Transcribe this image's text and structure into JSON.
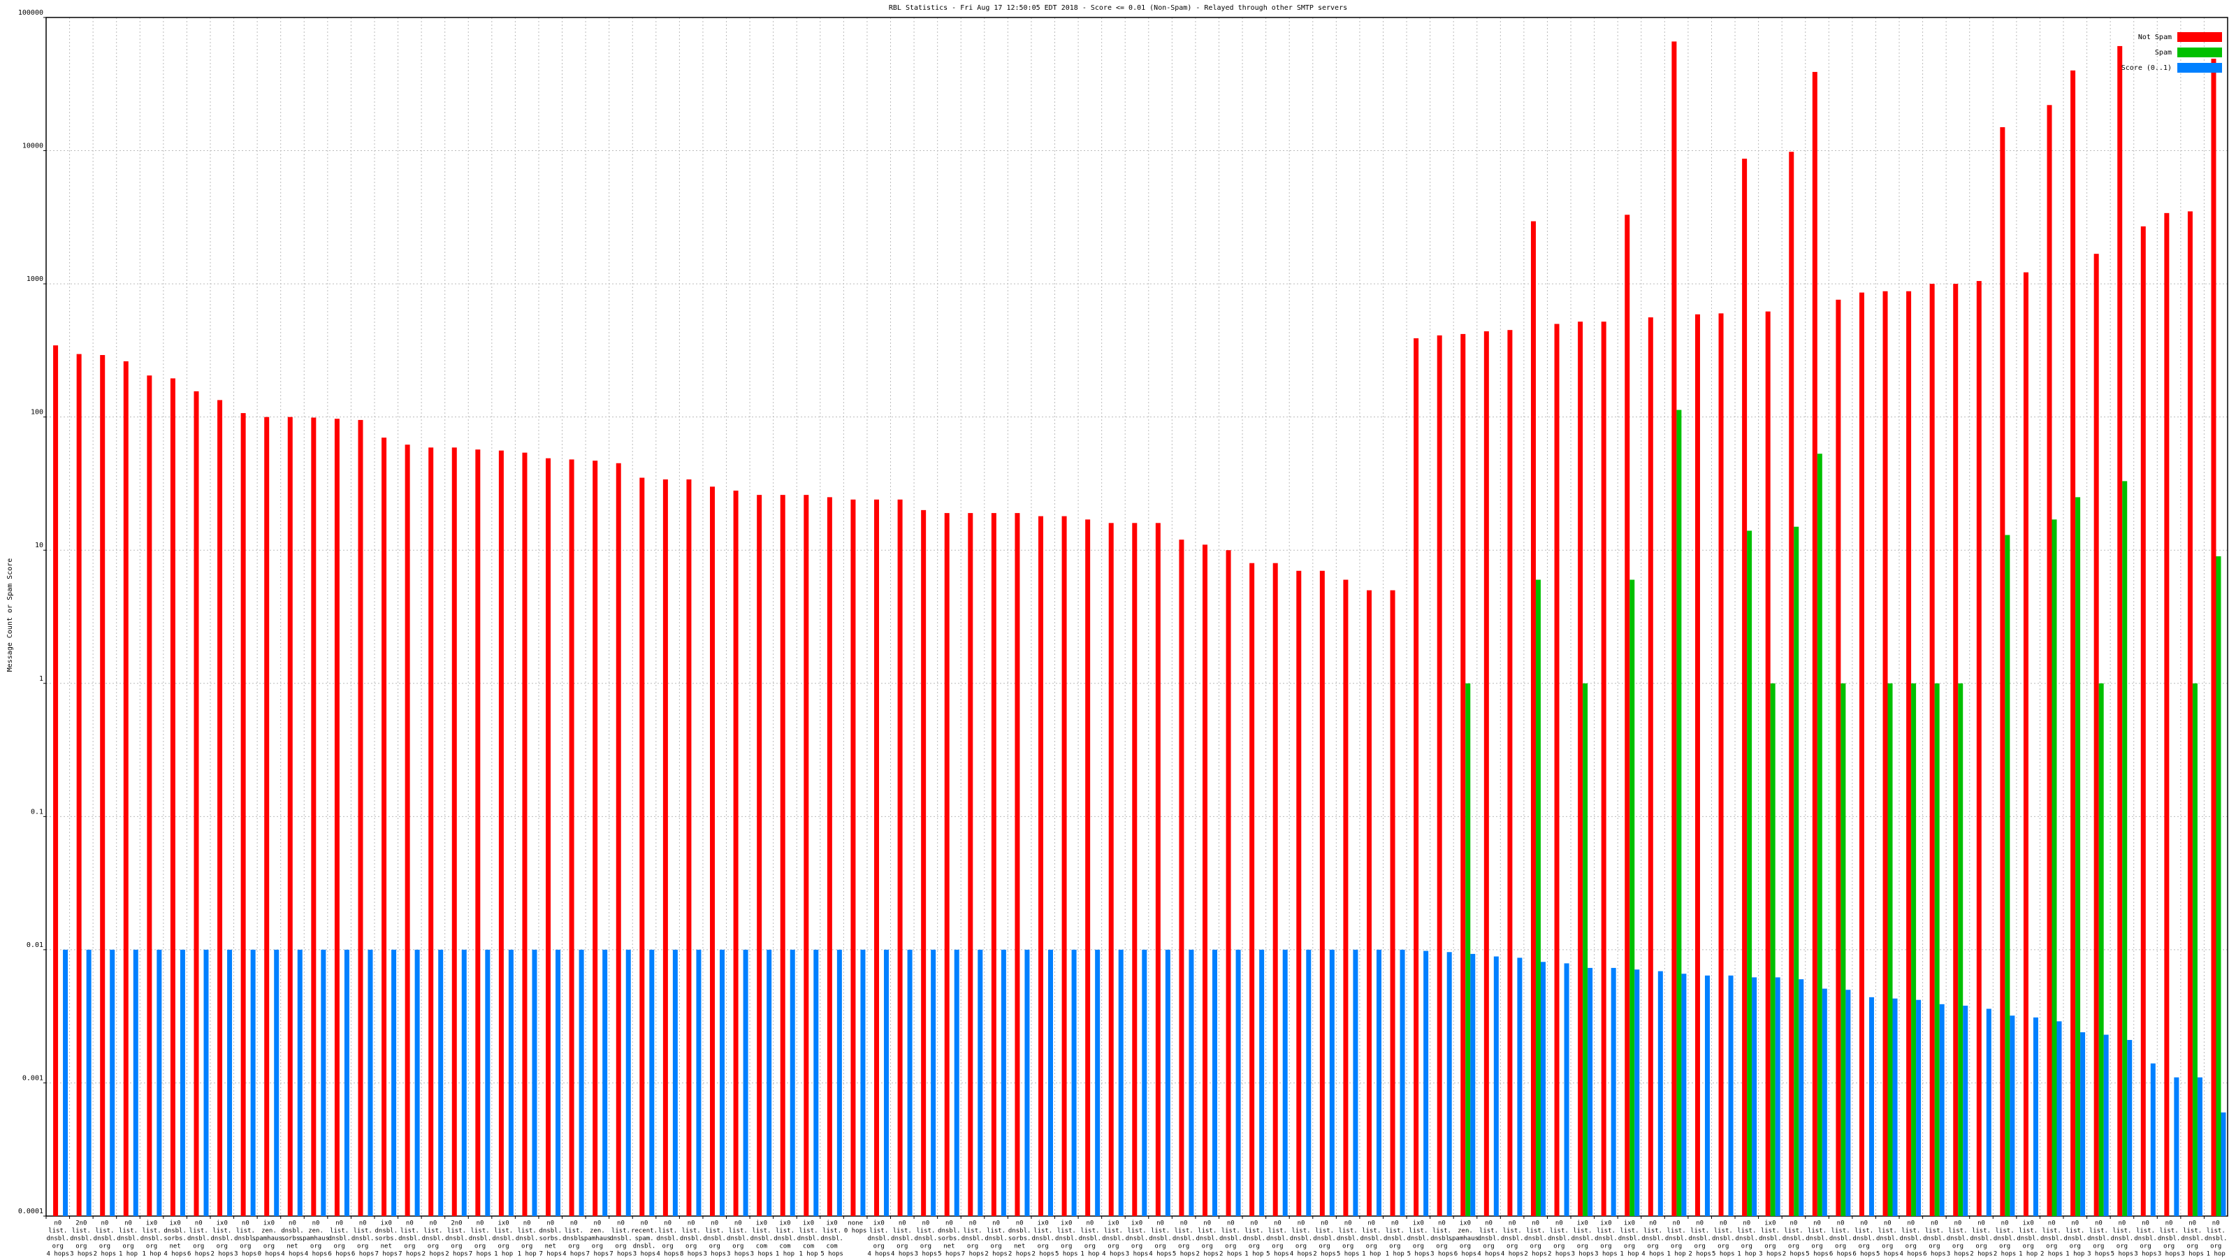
{
  "chart_data": {
    "type": "bar",
    "log_scale": true,
    "grid": true,
    "legend": "upper right",
    "title": "RBL Statistics - Fri Aug 17 12:50:05 EDT 2018 - Score <= 0.01 (Non-Spam) - Relayed through other SMTP servers",
    "y_label": "Message Count or Spam Score",
    "ylim": [
      0.0001,
      100000
    ],
    "yticks": [
      0.0001,
      0.001,
      0.01,
      0.1,
      1,
      10,
      100,
      1000,
      10000,
      100000
    ],
    "categories": [
      [
        "n0",
        "list.",
        "dnsbl.",
        "org",
        "4 hops"
      ],
      [
        "2n0",
        "list.",
        "dnsbl.",
        "org",
        "3 hops"
      ],
      [
        "n0",
        "list.",
        "dnsbl.",
        "org",
        "2 hops"
      ],
      [
        "n0",
        "list.",
        "dnsbl.",
        "org",
        "1 hop"
      ],
      [
        "ix0",
        "list.",
        "dnsbl.",
        "org",
        "1 hop"
      ],
      [
        "ix0",
        "dnsbl.",
        "sorbs.",
        "net",
        "4 hops"
      ],
      [
        "n0",
        "list.",
        "dnsbl.",
        "org",
        "6 hops"
      ],
      [
        "ix0",
        "list.",
        "dnsbl.",
        "org",
        "2 hops"
      ],
      [
        "n0",
        "list.",
        "dnsbl.",
        "org",
        "3 hops"
      ],
      [
        "ix0",
        "zen.",
        "spamhaus.",
        "org",
        "0 hops"
      ],
      [
        "n0",
        "dnsbl.",
        "sorbs.",
        "net",
        "4 hops"
      ],
      [
        "n0",
        "zen.",
        "spamhaus.",
        "org",
        "4 hops"
      ],
      [
        "n0",
        "list.",
        "dnsbl.",
        "org",
        "6 hops"
      ],
      [
        "n0",
        "list.",
        "dnsbl.",
        "org",
        "6 hops"
      ],
      [
        "ix0",
        "dnsbl.",
        "sorbs.",
        "net",
        "7 hops"
      ],
      [
        "n0",
        "list.",
        "dnsbl.",
        "org",
        "7 hops"
      ],
      [
        "n0",
        "list.",
        "dnsbl.",
        "org",
        "2 hops"
      ],
      [
        "2n0",
        "list.",
        "dnsbl.",
        "org",
        "2 hops"
      ],
      [
        "n0",
        "list.",
        "dnsbl.",
        "org",
        "7 hops"
      ],
      [
        "ix0",
        "list.",
        "dnsbl.",
        "org",
        "1 hop"
      ],
      [
        "n0",
        "list.",
        "dnsbl.",
        "org",
        "1 hop"
      ],
      [
        "n0",
        "dnsbl.",
        "sorbs.",
        "net",
        "7 hops"
      ],
      [
        "n0",
        "list.",
        "dnsbl.",
        "org",
        "4 hops"
      ],
      [
        "n0",
        "zen.",
        "spamhaus.",
        "org",
        "7 hops"
      ],
      [
        "n0",
        "list.",
        "dnsbl.",
        "org",
        "7 hops"
      ],
      [
        "n0",
        "recent.",
        "spam.",
        "dnsbl.",
        "3 hops"
      ],
      [
        "n0",
        "list.",
        "dnsbl.",
        "org",
        "4 hops"
      ],
      [
        "n0",
        "list.",
        "dnsbl.",
        "org",
        "8 hops"
      ],
      [
        "n0",
        "list.",
        "dnsbl.",
        "org",
        "3 hops"
      ],
      [
        "n0",
        "list.",
        "dnsbl.",
        "org",
        "3 hops"
      ],
      [
        "ix0",
        "list.",
        "dnsbl.",
        "com",
        "3 hops"
      ],
      [
        "ix0",
        "list.",
        "dnsbl.",
        "com",
        "1 hop"
      ],
      [
        "ix0",
        "list.",
        "dnsbl.",
        "com",
        "1 hop"
      ],
      [
        "ix0",
        "list.",
        "dnsbl.",
        "com",
        "5 hops"
      ],
      [
        "none",
        "0 hops"
      ],
      [
        "ix0",
        "list.",
        "dnsbl.",
        "org",
        "4 hops"
      ],
      [
        "n0",
        "list.",
        "dnsbl.",
        "org",
        "4 hops"
      ],
      [
        "n0",
        "list.",
        "dnsbl.",
        "org",
        "3 hops"
      ],
      [
        "n0",
        "dnsbl.",
        "sorbs.",
        "net",
        "5 hops"
      ],
      [
        "n0",
        "list.",
        "dnsbl.",
        "org",
        "7 hops"
      ],
      [
        "n0",
        "list.",
        "dnsbl.",
        "org",
        "2 hops"
      ],
      [
        "n0",
        "dnsbl.",
        "sorbs.",
        "net",
        "2 hops"
      ],
      [
        "ix0",
        "list.",
        "dnsbl.",
        "org",
        "2 hops"
      ],
      [
        "ix0",
        "list.",
        "dnsbl.",
        "org",
        "5 hops"
      ],
      [
        "n0",
        "list.",
        "dnsbl.",
        "org",
        "1 hop"
      ],
      [
        "ix0",
        "list.",
        "dnsbl.",
        "org",
        "4 hops"
      ],
      [
        "ix0",
        "list.",
        "dnsbl.",
        "org",
        "3 hops"
      ],
      [
        "n0",
        "list.",
        "dnsbl.",
        "org",
        "4 hops"
      ],
      [
        "n0",
        "list.",
        "dnsbl.",
        "org",
        "5 hops"
      ],
      [
        "n0",
        "list.",
        "dnsbl.",
        "org",
        "2 hops"
      ],
      [
        "n0",
        "list.",
        "dnsbl.",
        "org",
        "2 hops"
      ],
      [
        "n0",
        "list.",
        "dnsbl.",
        "org",
        "1 hop"
      ],
      [
        "n0",
        "list.",
        "dnsbl.",
        "org",
        "5 hops"
      ],
      [
        "n0",
        "list.",
        "dnsbl.",
        "org",
        "4 hops"
      ],
      [
        "n0",
        "list.",
        "dnsbl.",
        "org",
        "2 hops"
      ],
      [
        "n0",
        "list.",
        "dnsbl.",
        "org",
        "5 hops"
      ],
      [
        "n0",
        "list.",
        "dnsbl.",
        "org",
        "1 hop"
      ],
      [
        "n0",
        "list.",
        "dnsbl.",
        "org",
        "1 hop"
      ],
      [
        "ix0",
        "list.",
        "dnsbl.",
        "org",
        "5 hops"
      ],
      [
        "n0",
        "list.",
        "dnsbl.",
        "org",
        "3 hops"
      ],
      [
        "ix0",
        "zen.",
        "spamhaus.",
        "org",
        "6 hops"
      ],
      [
        "n0",
        "list.",
        "dnsbl.",
        "org",
        "4 hops"
      ],
      [
        "n0",
        "list.",
        "dnsbl.",
        "org",
        "4 hops"
      ],
      [
        "n0",
        "list.",
        "dnsbl.",
        "org",
        "2 hops"
      ],
      [
        "n0",
        "list.",
        "dnsbl.",
        "org",
        "2 hops"
      ],
      [
        "ix0",
        "list.",
        "dnsbl.",
        "org",
        "3 hops"
      ],
      [
        "ix0",
        "list.",
        "dnsbl.",
        "org",
        "3 hops"
      ],
      [
        "ix0",
        "list.",
        "dnsbl.",
        "org",
        "1 hop"
      ],
      [
        "n0",
        "list.",
        "dnsbl.",
        "org",
        "4 hops"
      ],
      [
        "n0",
        "list.",
        "dnsbl.",
        "org",
        "1 hop"
      ],
      [
        "n0",
        "list.",
        "dnsbl.",
        "org",
        "2 hops"
      ],
      [
        "n0",
        "list.",
        "dnsbl.",
        "org",
        "5 hops"
      ],
      [
        "n0",
        "list.",
        "dnsbl.",
        "org",
        "1 hop"
      ],
      [
        "ix0",
        "list.",
        "dnsbl.",
        "org",
        "3 hops"
      ],
      [
        "n0",
        "list.",
        "dnsbl.",
        "org",
        "2 hops"
      ],
      [
        "n0",
        "list.",
        "dnsbl.",
        "org",
        "5 hops"
      ],
      [
        "n0",
        "list.",
        "dnsbl.",
        "org",
        "6 hops"
      ],
      [
        "n0",
        "list.",
        "dnsbl.",
        "org",
        "6 hops"
      ],
      [
        "n0",
        "list.",
        "dnsbl.",
        "org",
        "5 hops"
      ],
      [
        "n0",
        "list.",
        "dnsbl.",
        "org",
        "4 hops"
      ],
      [
        "n0",
        "list.",
        "dnsbl.",
        "org",
        "6 hops"
      ],
      [
        "n0",
        "list.",
        "dnsbl.",
        "org",
        "3 hops"
      ],
      [
        "n0",
        "list.",
        "dnsbl.",
        "org",
        "2 hops"
      ],
      [
        "n0",
        "list.",
        "dnsbl.",
        "org",
        "2 hops"
      ],
      [
        "ix0",
        "list.",
        "dnsbl.",
        "org",
        "1 hop"
      ],
      [
        "n0",
        "list.",
        "dnsbl.",
        "org",
        "2 hops"
      ],
      [
        "n0",
        "list.",
        "dnsbl.",
        "org",
        "1 hop"
      ],
      [
        "n0",
        "list.",
        "dnsbl.",
        "org",
        "3 hops"
      ],
      [
        "n0",
        "list.",
        "dnsbl.",
        "org",
        "5 hops"
      ],
      [
        "n0",
        "list.",
        "dnsbl.",
        "org",
        "3 hops"
      ],
      [
        "n0",
        "list.",
        "dnsbl.",
        "org",
        "3 hops"
      ],
      [
        "n0",
        "list.",
        "dnsbl.",
        "org",
        "3 hops"
      ],
      [
        "n0",
        "list.",
        "dnsbl.",
        "org",
        "1 hop"
      ]
    ],
    "series": [
      {
        "name": "Not Spam",
        "color": "#ff0000",
        "values": [
          345,
          297,
          292,
          262,
          205,
          195,
          156,
          134,
          107,
          100,
          100,
          99,
          97,
          95,
          70,
          62,
          59,
          59,
          57,
          56,
          54,
          49,
          48,
          47,
          45,
          35,
          34,
          34,
          30,
          28,
          26,
          26,
          26,
          25,
          24,
          24,
          24,
          20,
          19,
          19,
          19,
          19,
          18,
          18,
          17,
          16,
          16,
          16,
          12,
          11,
          10,
          8,
          8,
          7,
          7,
          6,
          5,
          5,
          390,
          410,
          420,
          440,
          450,
          2950,
          500,
          520,
          520,
          3300,
          560,
          66000,
          590,
          600,
          8700,
          620,
          9800,
          39000,
          760,
          860,
          880,
          880,
          1000,
          1000,
          1050,
          15000,
          1220,
          22000,
          40000,
          1680,
          61000,
          2700,
          3400,
          3500,
          49000
        ]
      },
      {
        "name": "Spam",
        "color": "#00c000",
        "values": [
          null,
          null,
          null,
          null,
          null,
          null,
          null,
          null,
          null,
          null,
          null,
          null,
          null,
          null,
          null,
          null,
          null,
          null,
          null,
          null,
          null,
          null,
          null,
          null,
          null,
          null,
          null,
          null,
          null,
          null,
          null,
          null,
          null,
          null,
          null,
          null,
          null,
          null,
          null,
          null,
          null,
          null,
          null,
          null,
          null,
          null,
          null,
          null,
          null,
          null,
          null,
          null,
          null,
          null,
          null,
          null,
          null,
          null,
          null,
          null,
          1,
          null,
          null,
          6,
          null,
          1,
          null,
          6,
          null,
          113,
          null,
          null,
          14,
          1,
          15,
          53,
          1,
          null,
          1,
          1,
          1,
          1,
          null,
          13,
          null,
          17,
          25,
          1,
          33,
          null,
          null,
          1,
          9
        ]
      },
      {
        "name": "Score (0..1)",
        "color": "#0080ff",
        "values": [
          0.01,
          0.01,
          0.01,
          0.01,
          0.01,
          0.01,
          0.01,
          0.01,
          0.01,
          0.01,
          0.01,
          0.01,
          0.01,
          0.01,
          0.01,
          0.01,
          0.01,
          0.01,
          0.01,
          0.01,
          0.01,
          0.01,
          0.01,
          0.01,
          0.01,
          0.01,
          0.01,
          0.01,
          0.01,
          0.01,
          0.01,
          0.01,
          0.01,
          0.01,
          0.01,
          0.01,
          0.01,
          0.01,
          0.01,
          0.01,
          0.01,
          0.01,
          0.01,
          0.01,
          0.01,
          0.01,
          0.01,
          0.01,
          0.01,
          0.01,
          0.01,
          0.01,
          0.01,
          0.01,
          0.01,
          0.01,
          0.01,
          0.01,
          0.0098,
          0.0096,
          0.0093,
          0.0089,
          0.0087,
          0.0081,
          0.0079,
          0.0073,
          0.0073,
          0.0071,
          0.0069,
          0.0066,
          0.0064,
          0.0064,
          0.0062,
          0.0062,
          0.006,
          0.0051,
          0.005,
          0.0044,
          0.0043,
          0.0042,
          0.0039,
          0.0038,
          0.0036,
          0.0032,
          0.0031,
          0.0029,
          0.0024,
          0.0023,
          0.0021,
          0.0014,
          0.0011,
          0.0011,
          0.0006
        ]
      }
    ]
  }
}
